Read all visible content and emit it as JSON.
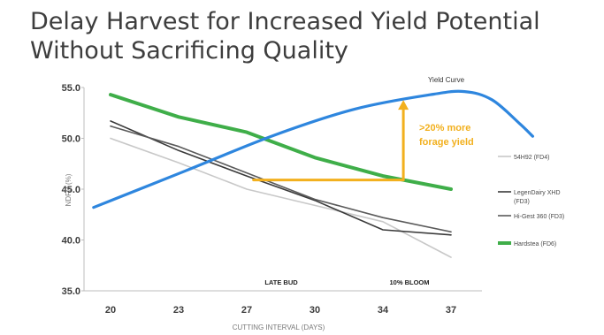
{
  "header": {
    "title_line1": "Delay Harvest for Increased Yield Potential",
    "title_line2": "Without Sacrificing Quality"
  },
  "chart_data": {
    "type": "line",
    "title": "Delay Harvest for Increased Yield Potential Without Sacrificing Quality",
    "xlabel": "CUTTING INTERVAL (DAYS)",
    "ylabel": "NDFD (%)",
    "categories": [
      "20",
      "23",
      "27",
      "30",
      "34",
      "37"
    ],
    "ylim": [
      35,
      55
    ],
    "yticks": [
      "35.0",
      "40.0",
      "45.0",
      "50.0",
      "55.0"
    ],
    "legend_position": "right",
    "grid": false,
    "series": [
      {
        "name": "54H92 (FD4)",
        "color": "#c8c8c8",
        "points": [
          [
            0,
            50.0
          ],
          [
            1,
            47.6
          ],
          [
            2,
            45.0
          ],
          [
            3,
            43.4
          ],
          [
            4,
            41.8
          ],
          [
            5,
            38.3
          ]
        ]
      },
      {
        "name": "LegenDairy XHD (FD3)",
        "color": "#3a3a3a",
        "points": [
          [
            0,
            51.7
          ],
          [
            1,
            48.8
          ],
          [
            2,
            46.3
          ],
          [
            3,
            43.9
          ],
          [
            4,
            41.0
          ],
          [
            5,
            40.5
          ]
        ]
      },
      {
        "name": "Hi-Gest 360 (FD3)",
        "color": "#5a5a5a",
        "points": [
          [
            0,
            51.2
          ],
          [
            1,
            49.2
          ],
          [
            2,
            46.6
          ],
          [
            3,
            44.0
          ],
          [
            4,
            42.2
          ],
          [
            5,
            40.8
          ]
        ]
      },
      {
        "name": "Hardstea (FD6)",
        "color": "#3fae49",
        "points": [
          [
            0,
            54.3
          ],
          [
            1,
            52.1
          ],
          [
            2,
            50.6
          ],
          [
            3,
            48.1
          ],
          [
            4,
            46.3
          ],
          [
            5,
            45.0
          ]
        ]
      }
    ],
    "yield_curve": {
      "label": "Yield Curve",
      "color": "#2e86de",
      "points": [
        [
          -0.25,
          43.2
        ],
        [
          1.1,
          46.8
        ],
        [
          2.4,
          50.3
        ],
        [
          3.6,
          52.9
        ],
        [
          4.7,
          54.3
        ],
        [
          5.2,
          54.6
        ],
        [
          5.6,
          53.8
        ],
        [
          6.0,
          51.5
        ],
        [
          6.2,
          50.2
        ]
      ]
    },
    "annotations": {
      "yield_gain_line1": ">20% more",
      "yield_gain_line2": "forage yield",
      "color": "#f2b01e",
      "late_bud": "LATE BUD",
      "ten_pct_bloom": "10% BLOOM"
    }
  }
}
